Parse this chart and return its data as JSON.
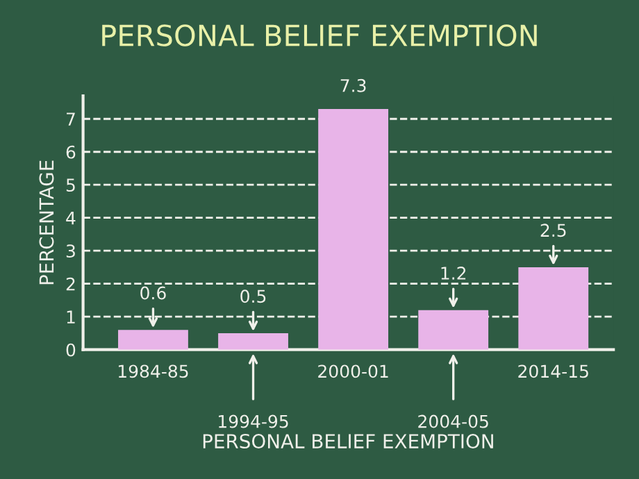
{
  "chart_data": {
    "type": "bar",
    "title": "PERSONAL BELIEF EXEMPTION",
    "xlabel": "PERSONAL BELIEF EXEMPTION",
    "ylabel": "PERCENTAGE",
    "categories": [
      "1984-85",
      "1994-95",
      "2000-01",
      "2004-05",
      "2014-15"
    ],
    "values": [
      0.6,
      0.5,
      7.3,
      1.2,
      2.5
    ],
    "color": "#e8b4e8",
    "ylim": [
      0,
      7.7
    ],
    "yticks": [
      0,
      1,
      2,
      3,
      4,
      5,
      6,
      7
    ],
    "grid": "y",
    "line_style": "dashed",
    "data_labels": true
  }
}
